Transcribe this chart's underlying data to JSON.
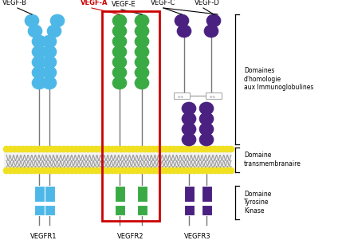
{
  "vegfr1_color": "#4db8e8",
  "vegfr2_color": "#3aaa44",
  "vegfr3_color": "#4a2080",
  "dot_color": "#f0e020",
  "red_color": "#cc0000",
  "label_vegfb": "VEGF-B",
  "label_vegfa": "VEGF-A",
  "label_vegfe": "VEGF-E",
  "label_vegfc": "VEGF-C",
  "label_vegfd": "VEGF-D",
  "label_r1": "VEGFR1",
  "label_r2": "VEGFR2",
  "label_r3": "VEGFR3",
  "label_ig1": "Domaines",
  "label_ig2": "d'homologie",
  "label_ig3": "aux Immunoglobulines",
  "label_tm1": "Domaine",
  "label_tm2": "transmembranaire",
  "label_tk1": "Domaine",
  "label_tk2": "Tyrosine",
  "label_tk3": "Kinase"
}
